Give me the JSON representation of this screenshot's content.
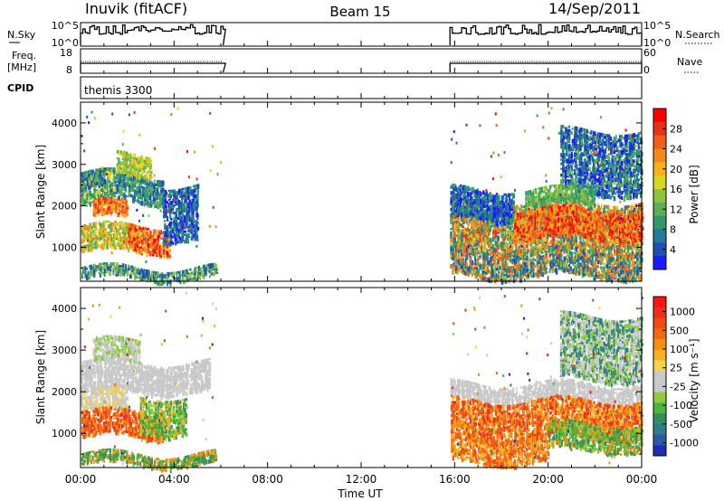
{
  "header": {
    "station": "Inuvik (fitACF)",
    "beam": "Beam 15",
    "date": "14/Sep/2011"
  },
  "panels": {
    "nsky": {
      "left_label": "N.Sky",
      "right_label": "N.Search",
      "left_ticks": [
        "10^5",
        "10^0"
      ],
      "right_ticks": [
        "10^5",
        "10^0"
      ]
    },
    "freq": {
      "left_label_1": "Freq.",
      "left_label_2": "[MHz]",
      "right_label": "Nave",
      "left_ticks": [
        "18",
        "8"
      ],
      "right_ticks": [
        "60",
        "0"
      ]
    },
    "cpid": {
      "left_label": "CPID",
      "program": "themis 3300"
    }
  },
  "chart_data": [
    {
      "type": "heatmap",
      "name": "power",
      "ylabel": "Slant Range [km]",
      "xlabel": "Time UT",
      "x_ticks": [
        "00:00",
        "04:00",
        "08:00",
        "12:00",
        "16:00",
        "20:00",
        "00:00"
      ],
      "xlim_hours": [
        0,
        24
      ],
      "y_ticks": [
        1000,
        2000,
        3000,
        4000
      ],
      "ylim": [
        180,
        4500
      ],
      "colorbar_label": "Power [dB]",
      "colorbar_ticks": [
        "4",
        "8",
        "12",
        "16",
        "20",
        "24",
        "28"
      ],
      "colors": [
        "#1a1aff",
        "#1e4fb4",
        "#23789c",
        "#2e9a6c",
        "#5caf55",
        "#8fc43a",
        "#d8d820",
        "#f7b11a",
        "#f58a1a",
        "#f0601a",
        "#e83218",
        "#ff0000"
      ],
      "data_intervals_hours": [
        [
          0,
          6.1
        ],
        [
          15.8,
          24
        ]
      ]
    },
    {
      "type": "heatmap",
      "name": "velocity",
      "ylabel": "Slant Range [km]",
      "xlabel": "Time UT",
      "x_ticks": [
        "00:00",
        "04:00",
        "08:00",
        "12:00",
        "16:00",
        "20:00",
        "00:00"
      ],
      "xlim_hours": [
        0,
        24
      ],
      "y_ticks": [
        1000,
        2000,
        3000,
        4000
      ],
      "ylim": [
        180,
        4500
      ],
      "colorbar_label": "Velocity [m s⁻¹]",
      "colorbar_ticks": [
        "1000",
        "500",
        "100",
        "25",
        "-25",
        "-100",
        "-500",
        "-1000"
      ],
      "colors": [
        "#1d2fb8",
        "#2a5aa8",
        "#2f7d8c",
        "#348f5a",
        "#4fb53a",
        "#8ccc3c",
        "#c9c9c9",
        "#c9c9c9",
        "#f7d34a",
        "#f7b020",
        "#f58f12",
        "#f06a12",
        "#ef4b14",
        "#ed2f18",
        "#ff1414"
      ],
      "data_intervals_hours": [
        [
          0,
          6.1
        ],
        [
          15.8,
          24
        ]
      ]
    }
  ]
}
